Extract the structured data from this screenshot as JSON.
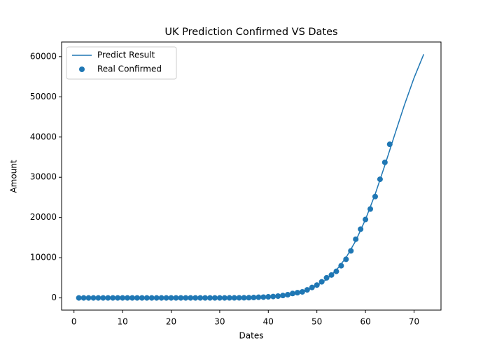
{
  "chart_data": {
    "type": "line",
    "title": "UK Prediction Confirmed VS Dates",
    "x_label": "Dates",
    "y_label": "Amount",
    "xlim": [
      -2.55,
      75.55
    ],
    "xticks": [
      0,
      10,
      20,
      30,
      40,
      50,
      60,
      70
    ],
    "ylim": [
      -3030,
      63630
    ],
    "yticks": [
      0,
      10000,
      20000,
      30000,
      40000,
      50000,
      60000
    ],
    "grid": false,
    "legend": "upper left",
    "series": [
      {
        "name": "Predict Result",
        "type": "line",
        "color": "#1f77b4",
        "x": [
          1,
          10,
          20,
          30,
          35,
          40,
          42,
          44,
          46,
          48,
          50,
          52,
          54,
          56,
          58,
          60,
          62,
          64,
          66,
          68,
          70,
          72
        ],
        "values": [
          0,
          0,
          0,
          0,
          20,
          250,
          450,
          750,
          1200,
          1900,
          3000,
          4600,
          6900,
          10000,
          14200,
          19500,
          25800,
          33000,
          40500,
          47900,
          54700,
          60600
        ]
      },
      {
        "name": "Real Confirmed",
        "type": "scatter",
        "color": "#1f77b4",
        "x": [
          1,
          2,
          3,
          4,
          5,
          6,
          7,
          8,
          9,
          10,
          11,
          12,
          13,
          14,
          15,
          16,
          17,
          18,
          19,
          20,
          21,
          22,
          23,
          24,
          25,
          26,
          27,
          28,
          29,
          30,
          31,
          32,
          33,
          34,
          35,
          36,
          37,
          38,
          39,
          40,
          41,
          42,
          43,
          44,
          45,
          46,
          47,
          48,
          49,
          50,
          51,
          52,
          53,
          54,
          55,
          56,
          57,
          58,
          59,
          60,
          61,
          62,
          63,
          64,
          65
        ],
        "values": [
          0,
          0,
          0,
          0,
          0,
          0,
          0,
          0,
          0,
          0,
          0,
          0,
          0,
          0,
          0,
          0,
          0,
          0,
          0,
          0,
          0,
          0,
          0,
          0,
          0,
          0,
          0,
          0,
          0,
          0,
          0,
          5,
          10,
          20,
          30,
          50,
          100,
          160,
          200,
          270,
          350,
          450,
          600,
          800,
          1100,
          1300,
          1500,
          2000,
          2600,
          3200,
          4000,
          5000,
          5700,
          6600,
          8000,
          9600,
          11700,
          14600,
          17100,
          19500,
          22100,
          25200,
          29500,
          33700,
          38200
        ]
      }
    ]
  }
}
